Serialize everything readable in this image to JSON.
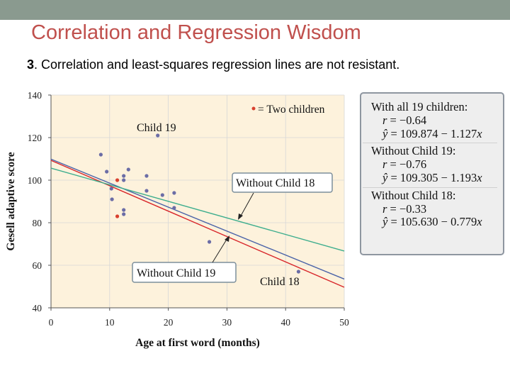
{
  "slide": {
    "title": "Correlation and Regression Wisdom",
    "subtitle_number": "3",
    "subtitle_text": ". Correlation and least-squares regression lines are not resistant."
  },
  "colors": {
    "title": "#c0504d",
    "plot_background": "#fdf2dc",
    "point": "#6b6da6",
    "highlight_point": "#d9412f",
    "line_all": "#4a63a8",
    "line_without_19": "#d8262a",
    "line_without_18": "#3fae8e"
  },
  "stats": {
    "all": {
      "heading": "With all 19 children:",
      "r": "−0.64",
      "eq": "109.874 − 1.127"
    },
    "without19": {
      "heading": "Without Child 19:",
      "r": "−0.76",
      "eq": "109.305 − 1.193"
    },
    "without18": {
      "heading": "Without Child 18:",
      "r": "−0.33",
      "eq": "105.630 − 0.779"
    },
    "r_label": "r",
    "eq_label": "ŷ",
    "eq_var": "x",
    "equals": " = "
  },
  "chart_data": {
    "type": "scatter",
    "title": "",
    "xlabel": "Age at first word (months)",
    "ylabel": "Gesell adaptive score",
    "xlim": [
      0,
      50
    ],
    "ylim": [
      40,
      140
    ],
    "xticks": [
      0,
      10,
      20,
      30,
      40,
      50
    ],
    "yticks": [
      40,
      60,
      80,
      100,
      120,
      140
    ],
    "legend": {
      "text": "= Two children",
      "position": "top-right"
    },
    "series": [
      {
        "name": "children",
        "points": [
          {
            "x": 8.5,
            "y": 112
          },
          {
            "x": 9.5,
            "y": 104
          },
          {
            "x": 10.3,
            "y": 96
          },
          {
            "x": 10.4,
            "y": 91
          },
          {
            "x": 12.4,
            "y": 102
          },
          {
            "x": 12.4,
            "y": 100
          },
          {
            "x": 12.4,
            "y": 86
          },
          {
            "x": 12.4,
            "y": 84
          },
          {
            "x": 13.2,
            "y": 105
          },
          {
            "x": 16.3,
            "y": 102
          },
          {
            "x": 16.3,
            "y": 95
          },
          {
            "x": 19,
            "y": 93
          },
          {
            "x": 21,
            "y": 94
          },
          {
            "x": 21,
            "y": 87
          },
          {
            "x": 27,
            "y": 71
          },
          {
            "x": 18.2,
            "y": 121,
            "label": "Child 19"
          },
          {
            "x": 42.2,
            "y": 57,
            "label": "Child 18"
          }
        ]
      },
      {
        "name": "Two children",
        "points": [
          {
            "x": 11.3,
            "y": 100
          },
          {
            "x": 11.3,
            "y": 83
          }
        ]
      }
    ],
    "lines": [
      {
        "name": "With all 19 children",
        "intercept": 109.874,
        "slope": -1.127
      },
      {
        "name": "Without Child 19",
        "intercept": 109.305,
        "slope": -1.193,
        "label": "Without Child 19"
      },
      {
        "name": "Without Child 18",
        "intercept": 105.63,
        "slope": -0.779,
        "label": "Without Child 18"
      }
    ],
    "annotations": {
      "child19": "Child 19",
      "child18": "Child 18"
    }
  }
}
